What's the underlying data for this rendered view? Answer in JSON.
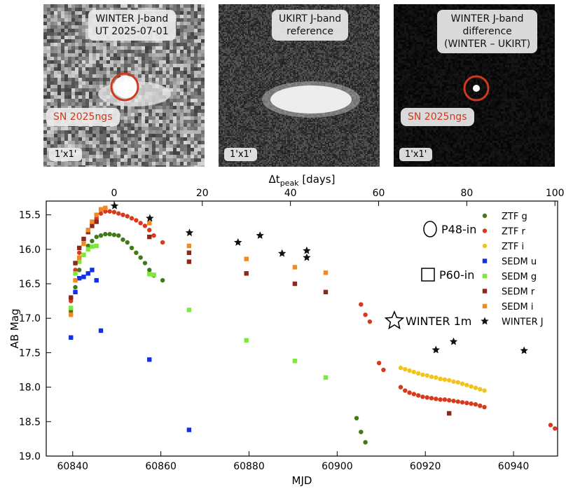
{
  "panels": [
    {
      "title_lines": [
        "WINTER J-band",
        "UT 2025-07-01"
      ],
      "label": "SN 2025ngs",
      "scale": "1'x1'"
    },
    {
      "title_lines": [
        "UKIRT J-band",
        "reference"
      ],
      "scale": "1'x1'"
    },
    {
      "title_lines": [
        "WINTER J-band",
        "difference",
        "(WINTER – UKIRT)"
      ],
      "label": "SN 2025ngs",
      "scale": "1'x1'"
    }
  ],
  "chart_data": {
    "type": "scatter",
    "xlabel": "MJD",
    "ylabel": "AB Mag",
    "top_xlabel_main": "Δt",
    "top_xlabel_sub": "peak",
    "top_xlabel_unit": " [days]",
    "xlim": [
      60834,
      60950
    ],
    "ylim": [
      19.0,
      15.3
    ],
    "peak_mjd": 60849.4,
    "xticks": [
      60840,
      60860,
      60880,
      60900,
      60920,
      60940
    ],
    "yticks": [
      15.5,
      16.0,
      16.5,
      17.0,
      17.5,
      18.0,
      18.5,
      19.0
    ],
    "top_ticks": [
      0,
      20,
      40,
      60,
      80,
      100
    ],
    "marker_legend": [
      {
        "label": "P48-in",
        "shape": "circle"
      },
      {
        "label": "P60-in",
        "shape": "square"
      },
      {
        "label": "WINTER 1m",
        "shape": "star"
      }
    ],
    "series": [
      {
        "name": "ZTF g",
        "color": "#3f7a18",
        "marker": "circle",
        "points": [
          [
            60839.6,
            16.9
          ],
          [
            60840.6,
            16.55
          ],
          [
            60841.5,
            16.3
          ],
          [
            60842.5,
            16.08
          ],
          [
            60843.5,
            15.95
          ],
          [
            60844.4,
            15.88
          ],
          [
            60845.4,
            15.82
          ],
          [
            60846.4,
            15.8
          ],
          [
            60847.4,
            15.78
          ],
          [
            60848.4,
            15.78
          ],
          [
            60849.4,
            15.79
          ],
          [
            60850.4,
            15.8
          ],
          [
            60851.4,
            15.86
          ],
          [
            60852.4,
            15.9
          ],
          [
            60853.4,
            15.98
          ],
          [
            60854.4,
            16.05
          ],
          [
            60855.4,
            16.12
          ],
          [
            60856.4,
            16.2
          ],
          [
            60857.4,
            16.3
          ],
          [
            60858.4,
            16.38
          ],
          [
            60860.4,
            16.45
          ],
          [
            60904.4,
            18.45
          ],
          [
            60905.4,
            18.65
          ],
          [
            60906.4,
            18.8
          ]
        ]
      },
      {
        "name": "ZTF r",
        "color": "#d8391c",
        "marker": "circle",
        "points": [
          [
            60839.6,
            16.75
          ],
          [
            60840.6,
            16.3
          ],
          [
            60841.5,
            16.05
          ],
          [
            60842.5,
            15.85
          ],
          [
            60843.5,
            15.72
          ],
          [
            60844.4,
            15.62
          ],
          [
            60845.4,
            15.55
          ],
          [
            60846.4,
            15.48
          ],
          [
            60847.4,
            15.45
          ],
          [
            60848.4,
            15.45
          ],
          [
            60849.4,
            15.46
          ],
          [
            60850.4,
            15.48
          ],
          [
            60851.4,
            15.5
          ],
          [
            60852.4,
            15.52
          ],
          [
            60853.4,
            15.55
          ],
          [
            60854.4,
            15.58
          ],
          [
            60855.4,
            15.62
          ],
          [
            60856.4,
            15.66
          ],
          [
            60857.4,
            15.72
          ],
          [
            60858.4,
            15.8
          ],
          [
            60860.4,
            15.9
          ],
          [
            60905.4,
            16.8
          ],
          [
            60906.4,
            16.95
          ],
          [
            60907.4,
            17.05
          ],
          [
            60909.5,
            17.65
          ],
          [
            60910.5,
            17.75
          ],
          [
            60914.4,
            18.0
          ],
          [
            60915.4,
            18.05
          ],
          [
            60916.4,
            18.08
          ],
          [
            60917.4,
            18.1
          ],
          [
            60918.4,
            18.12
          ],
          [
            60919.4,
            18.14
          ],
          [
            60920.4,
            18.15
          ],
          [
            60921.4,
            18.16
          ],
          [
            60922.4,
            18.17
          ],
          [
            60923.4,
            18.18
          ],
          [
            60924.4,
            18.18
          ],
          [
            60925.4,
            18.19
          ],
          [
            60926.4,
            18.2
          ],
          [
            60927.4,
            18.21
          ],
          [
            60928.4,
            18.22
          ],
          [
            60929.4,
            18.23
          ],
          [
            60930.4,
            18.24
          ],
          [
            60931.4,
            18.25
          ],
          [
            60932.4,
            18.27
          ],
          [
            60933.4,
            18.29
          ],
          [
            60948.4,
            18.55
          ],
          [
            60949.4,
            18.6
          ]
        ]
      },
      {
        "name": "ZTF i",
        "color": "#f2c419",
        "marker": "circle",
        "points": [
          [
            60914.4,
            17.72
          ],
          [
            60915.4,
            17.74
          ],
          [
            60916.4,
            17.76
          ],
          [
            60917.4,
            17.78
          ],
          [
            60918.4,
            17.8
          ],
          [
            60919.4,
            17.82
          ],
          [
            60920.4,
            17.83
          ],
          [
            60921.4,
            17.85
          ],
          [
            60922.4,
            17.86
          ],
          [
            60923.4,
            17.88
          ],
          [
            60924.4,
            17.89
          ],
          [
            60925.4,
            17.9
          ],
          [
            60926.4,
            17.92
          ],
          [
            60927.4,
            17.93
          ],
          [
            60928.4,
            17.95
          ],
          [
            60929.4,
            17.97
          ],
          [
            60930.4,
            17.99
          ],
          [
            60931.4,
            18.01
          ],
          [
            60932.4,
            18.03
          ],
          [
            60933.4,
            18.05
          ]
        ]
      },
      {
        "name": "SEDM u",
        "color": "#1030e8",
        "marker": "square",
        "points": [
          [
            60839.6,
            17.28
          ],
          [
            60840.6,
            16.62
          ],
          [
            60841.5,
            16.42
          ],
          [
            60842.5,
            16.4
          ],
          [
            60843.5,
            16.35
          ],
          [
            60844.4,
            16.3
          ],
          [
            60845.4,
            16.45
          ],
          [
            60846.4,
            17.18
          ],
          [
            60857.4,
            17.6
          ],
          [
            60866.4,
            18.62
          ]
        ]
      },
      {
        "name": "SEDM g",
        "color": "#7be83b",
        "marker": "square",
        "points": [
          [
            60839.6,
            16.85
          ],
          [
            60840.6,
            16.35
          ],
          [
            60841.5,
            16.18
          ],
          [
            60842.5,
            16.08
          ],
          [
            60843.5,
            16.0
          ],
          [
            60844.4,
            15.96
          ],
          [
            60845.4,
            15.95
          ],
          [
            60857.4,
            16.36
          ],
          [
            60858.4,
            16.37
          ],
          [
            60866.4,
            16.88
          ],
          [
            60879.4,
            17.32
          ],
          [
            60890.4,
            17.62
          ],
          [
            60897.4,
            17.86
          ]
        ]
      },
      {
        "name": "SEDM r",
        "color": "#8b2a1c",
        "marker": "square",
        "points": [
          [
            60839.6,
            16.7
          ],
          [
            60840.6,
            16.2
          ],
          [
            60841.5,
            15.98
          ],
          [
            60842.5,
            15.85
          ],
          [
            60843.5,
            15.75
          ],
          [
            60844.4,
            15.66
          ],
          [
            60845.4,
            15.6
          ],
          [
            60857.4,
            15.82
          ],
          [
            60866.4,
            16.05
          ],
          [
            60866.4,
            16.18
          ],
          [
            60879.4,
            16.35
          ],
          [
            60890.4,
            16.5
          ],
          [
            60897.4,
            16.62
          ],
          [
            60925.4,
            18.38
          ]
        ]
      },
      {
        "name": "SEDM i",
        "color": "#ee8a22",
        "marker": "square",
        "points": [
          [
            60839.6,
            16.95
          ],
          [
            60840.6,
            16.45
          ],
          [
            60841.5,
            16.12
          ],
          [
            60842.5,
            15.92
          ],
          [
            60843.5,
            15.72
          ],
          [
            60844.4,
            15.6
          ],
          [
            60845.4,
            15.5
          ],
          [
            60846.4,
            15.42
          ],
          [
            60847.4,
            15.4
          ],
          [
            60857.4,
            15.62
          ],
          [
            60866.4,
            15.95
          ],
          [
            60879.4,
            16.14
          ],
          [
            60890.4,
            16.26
          ],
          [
            60897.4,
            16.34
          ]
        ]
      },
      {
        "name": "WINTER J",
        "color": "#111111",
        "marker": "star",
        "points": [
          [
            60849.5,
            15.37
          ],
          [
            60857.5,
            15.55
          ],
          [
            60866.5,
            15.76
          ],
          [
            60877.5,
            15.9
          ],
          [
            60882.5,
            15.8
          ],
          [
            60887.5,
            16.06
          ],
          [
            60893.1,
            16.02
          ],
          [
            60893.1,
            16.12
          ],
          [
            60922.4,
            17.46
          ],
          [
            60926.4,
            17.34
          ],
          [
            60942.4,
            17.47
          ]
        ]
      }
    ]
  }
}
